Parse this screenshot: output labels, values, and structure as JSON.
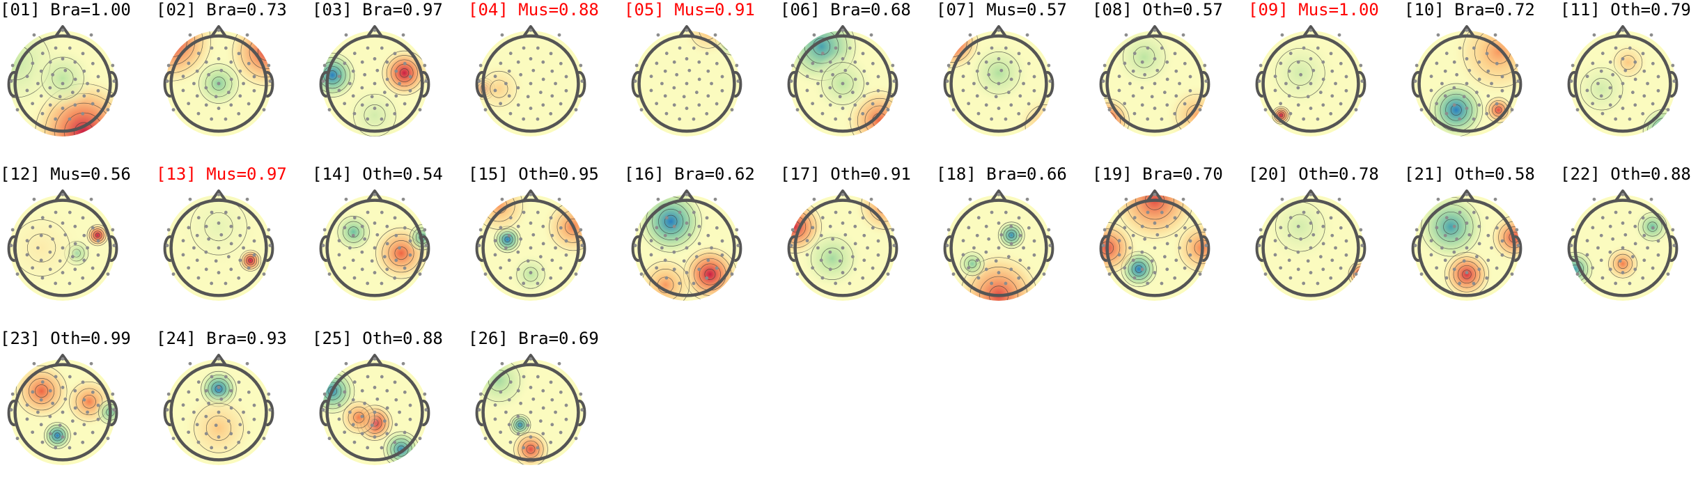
{
  "colors": {
    "flagged": "#ff0000",
    "normal": "#000000",
    "head_outline": "#555555",
    "sensor_dot": "#8c8c8c",
    "contour_line": "#3a3a3a"
  },
  "colormap": [
    "#2a7fbf",
    "#5bb7a2",
    "#b6e29f",
    "#fbfbbf",
    "#fdc57c",
    "#f26d43",
    "#c91e44"
  ],
  "components": [
    {
      "id": "[01]",
      "label": "Bra=1.00",
      "flagged": false,
      "blobs": [
        [
          0.7,
          0.96,
          0.55,
          1.0,
          0.35
        ],
        [
          0.05,
          0.3,
          0.5,
          -0.25,
          0.35
        ],
        [
          0.5,
          0.45,
          0.3,
          -0.3,
          0.5
        ]
      ]
    },
    {
      "id": "[02]",
      "label": "Bra=0.73",
      "flagged": false,
      "blobs": [
        [
          0.05,
          0.1,
          0.45,
          0.9,
          0.45
        ],
        [
          0.95,
          0.2,
          0.4,
          0.8,
          0.4
        ],
        [
          0.5,
          0.5,
          0.25,
          -0.5,
          0.25
        ]
      ]
    },
    {
      "id": "[03]",
      "label": "Bra=0.97",
      "flagged": false,
      "blobs": [
        [
          0.78,
          0.4,
          0.25,
          1.0,
          0.25
        ],
        [
          0.1,
          0.42,
          0.25,
          -1.0,
          0.25
        ],
        [
          0.5,
          0.8,
          0.3,
          -0.2,
          0.3
        ]
      ]
    },
    {
      "id": "[04]",
      "label": "Mus=0.88",
      "flagged": true,
      "blobs": [
        [
          0.06,
          0.55,
          0.12,
          1.0,
          0.12
        ],
        [
          0.2,
          0.55,
          0.25,
          0.25,
          0.25
        ]
      ]
    },
    {
      "id": "[05]",
      "label": "Mus=0.91",
      "flagged": true,
      "blobs": [
        [
          0.95,
          0.05,
          0.22,
          -1.0,
          0.18
        ],
        [
          0.7,
          0.0,
          0.25,
          0.35,
          0.2
        ]
      ]
    },
    {
      "id": "[06]",
      "label": "Bra=0.68",
      "flagged": false,
      "blobs": [
        [
          0.3,
          0.15,
          0.4,
          -0.8,
          0.35
        ],
        [
          0.85,
          0.85,
          0.35,
          0.7,
          0.35
        ],
        [
          0.5,
          0.5,
          0.3,
          -0.3,
          0.3
        ]
      ]
    },
    {
      "id": "[07]",
      "label": "Mus=0.57",
      "flagged": false,
      "blobs": [
        [
          0.05,
          0.1,
          0.3,
          1.0,
          0.25
        ],
        [
          0.95,
          0.9,
          0.3,
          0.4,
          0.3
        ],
        [
          0.5,
          0.4,
          0.3,
          -0.35,
          0.3
        ]
      ]
    },
    {
      "id": "[08]",
      "label": "Oth=0.57",
      "flagged": false,
      "blobs": [
        [
          0.05,
          0.85,
          0.25,
          0.9,
          0.25
        ],
        [
          0.9,
          0.8,
          0.3,
          0.45,
          0.3
        ],
        [
          0.4,
          0.25,
          0.3,
          -0.3,
          0.3
        ]
      ]
    },
    {
      "id": "[09]",
      "label": "Mus=1.00",
      "flagged": true,
      "blobs": [
        [
          0.22,
          0.8,
          0.1,
          1.0,
          0.1
        ],
        [
          0.4,
          0.4,
          0.35,
          -0.2,
          0.35
        ]
      ]
    },
    {
      "id": "[10]",
      "label": "Bra=0.72",
      "flagged": false,
      "blobs": [
        [
          0.4,
          0.75,
          0.3,
          -1.0,
          0.3
        ],
        [
          0.8,
          0.2,
          0.45,
          0.5,
          0.4
        ],
        [
          0.8,
          0.75,
          0.15,
          0.8,
          0.15
        ]
      ]
    },
    {
      "id": "[11]",
      "label": "Oth=0.79",
      "flagged": false,
      "blobs": [
        [
          0.9,
          0.95,
          0.25,
          -1.0,
          0.2
        ],
        [
          0.55,
          0.3,
          0.2,
          0.3,
          0.2
        ],
        [
          0.3,
          0.55,
          0.3,
          -0.2,
          0.3
        ]
      ]
    },
    {
      "id": "[12]",
      "label": "Mus=0.56",
      "flagged": false,
      "blobs": [
        [
          0.83,
          0.38,
          0.12,
          1.0,
          0.12
        ],
        [
          0.63,
          0.55,
          0.15,
          -0.5,
          0.15
        ],
        [
          0.3,
          0.5,
          0.4,
          0.1,
          0.4
        ]
      ]
    },
    {
      "id": "[13]",
      "label": "Mus=0.97",
      "flagged": true,
      "blobs": [
        [
          0.8,
          0.62,
          0.12,
          1.0,
          0.12
        ],
        [
          0.5,
          0.3,
          0.4,
          -0.1,
          0.4
        ]
      ]
    },
    {
      "id": "[14]",
      "label": "Oth=0.54",
      "flagged": false,
      "blobs": [
        [
          0.3,
          0.35,
          0.2,
          -0.6,
          0.2
        ],
        [
          0.75,
          0.55,
          0.3,
          0.7,
          0.3
        ],
        [
          0.95,
          0.4,
          0.15,
          -0.7,
          0.12
        ]
      ]
    },
    {
      "id": "[15]",
      "label": "Oth=0.95",
      "flagged": false,
      "blobs": [
        [
          0.28,
          0.42,
          0.15,
          -1.0,
          0.15
        ],
        [
          0.9,
          0.3,
          0.3,
          0.6,
          0.3
        ],
        [
          0.2,
          0.1,
          0.3,
          0.5,
          0.3
        ],
        [
          0.5,
          0.75,
          0.2,
          -0.3,
          0.2
        ]
      ]
    },
    {
      "id": "[16]",
      "label": "Bra=0.62",
      "flagged": false,
      "blobs": [
        [
          0.35,
          0.25,
          0.35,
          -1.0,
          0.3
        ],
        [
          0.72,
          0.75,
          0.3,
          1.0,
          0.25
        ],
        [
          0.3,
          0.85,
          0.3,
          0.5,
          0.3
        ]
      ]
    },
    {
      "id": "[17]",
      "label": "Oth=0.91",
      "flagged": false,
      "blobs": [
        [
          0.05,
          0.3,
          0.3,
          0.9,
          0.25
        ],
        [
          0.9,
          0.1,
          0.3,
          0.6,
          0.3
        ],
        [
          0.4,
          0.6,
          0.3,
          -0.4,
          0.3
        ]
      ]
    },
    {
      "id": "[18]",
      "label": "Bra=0.66",
      "flagged": false,
      "blobs": [
        [
          0.62,
          0.38,
          0.15,
          -0.9,
          0.15
        ],
        [
          0.5,
          0.95,
          0.45,
          0.8,
          0.35
        ],
        [
          0.25,
          0.65,
          0.15,
          -0.5,
          0.15
        ]
      ]
    },
    {
      "id": "[19]",
      "label": "Bra=0.70",
      "flagged": false,
      "blobs": [
        [
          0.35,
          0.7,
          0.2,
          -1.0,
          0.2
        ],
        [
          0.5,
          0.05,
          0.45,
          0.8,
          0.4
        ],
        [
          0.05,
          0.5,
          0.3,
          0.8,
          0.3
        ],
        [
          0.95,
          0.5,
          0.3,
          0.6,
          0.3
        ]
      ]
    },
    {
      "id": "[20]",
      "label": "Oth=0.78",
      "flagged": false,
      "blobs": [
        [
          0.98,
          0.75,
          0.15,
          1.0,
          0.12
        ],
        [
          0.4,
          0.3,
          0.35,
          -0.2,
          0.35
        ]
      ]
    },
    {
      "id": "[21]",
      "label": "Oth=0.58",
      "flagged": false,
      "blobs": [
        [
          0.35,
          0.3,
          0.35,
          -0.8,
          0.3
        ],
        [
          0.5,
          0.75,
          0.25,
          0.9,
          0.25
        ],
        [
          0.95,
          0.4,
          0.25,
          0.8,
          0.25
        ]
      ]
    },
    {
      "id": "[22]",
      "label": "Oth=0.88",
      "flagged": false,
      "blobs": [
        [
          0.78,
          0.3,
          0.18,
          -0.6,
          0.18
        ],
        [
          0.5,
          0.65,
          0.18,
          0.6,
          0.18
        ],
        [
          0.05,
          0.7,
          0.2,
          -0.8,
          0.2
        ]
      ]
    },
    {
      "id": "[23]",
      "label": "Oth=0.99",
      "flagged": false,
      "blobs": [
        [
          0.45,
          0.72,
          0.15,
          -1.0,
          0.15
        ],
        [
          0.3,
          0.3,
          0.3,
          0.7,
          0.3
        ],
        [
          0.75,
          0.4,
          0.25,
          0.6,
          0.25
        ],
        [
          0.95,
          0.5,
          0.15,
          -0.6,
          0.15
        ]
      ]
    },
    {
      "id": "[24]",
      "label": "Bra=0.93",
      "flagged": false,
      "blobs": [
        [
          0.5,
          0.28,
          0.2,
          -1.0,
          0.2
        ],
        [
          0.5,
          0.65,
          0.35,
          0.3,
          0.35
        ]
      ]
    },
    {
      "id": "[25]",
      "label": "Oth=0.88",
      "flagged": false,
      "blobs": [
        [
          0.1,
          0.3,
          0.25,
          -0.9,
          0.25
        ],
        [
          0.5,
          0.6,
          0.2,
          1.0,
          0.2
        ],
        [
          0.75,
          0.85,
          0.2,
          -0.9,
          0.2
        ],
        [
          0.35,
          0.55,
          0.2,
          0.6,
          0.2
        ]
      ]
    },
    {
      "id": "[26]",
      "label": "Bra=0.69",
      "flagged": false,
      "blobs": [
        [
          0.4,
          0.62,
          0.12,
          -0.9,
          0.12
        ],
        [
          0.5,
          0.85,
          0.2,
          0.8,
          0.2
        ],
        [
          0.2,
          0.2,
          0.3,
          -0.4,
          0.3
        ]
      ]
    }
  ]
}
